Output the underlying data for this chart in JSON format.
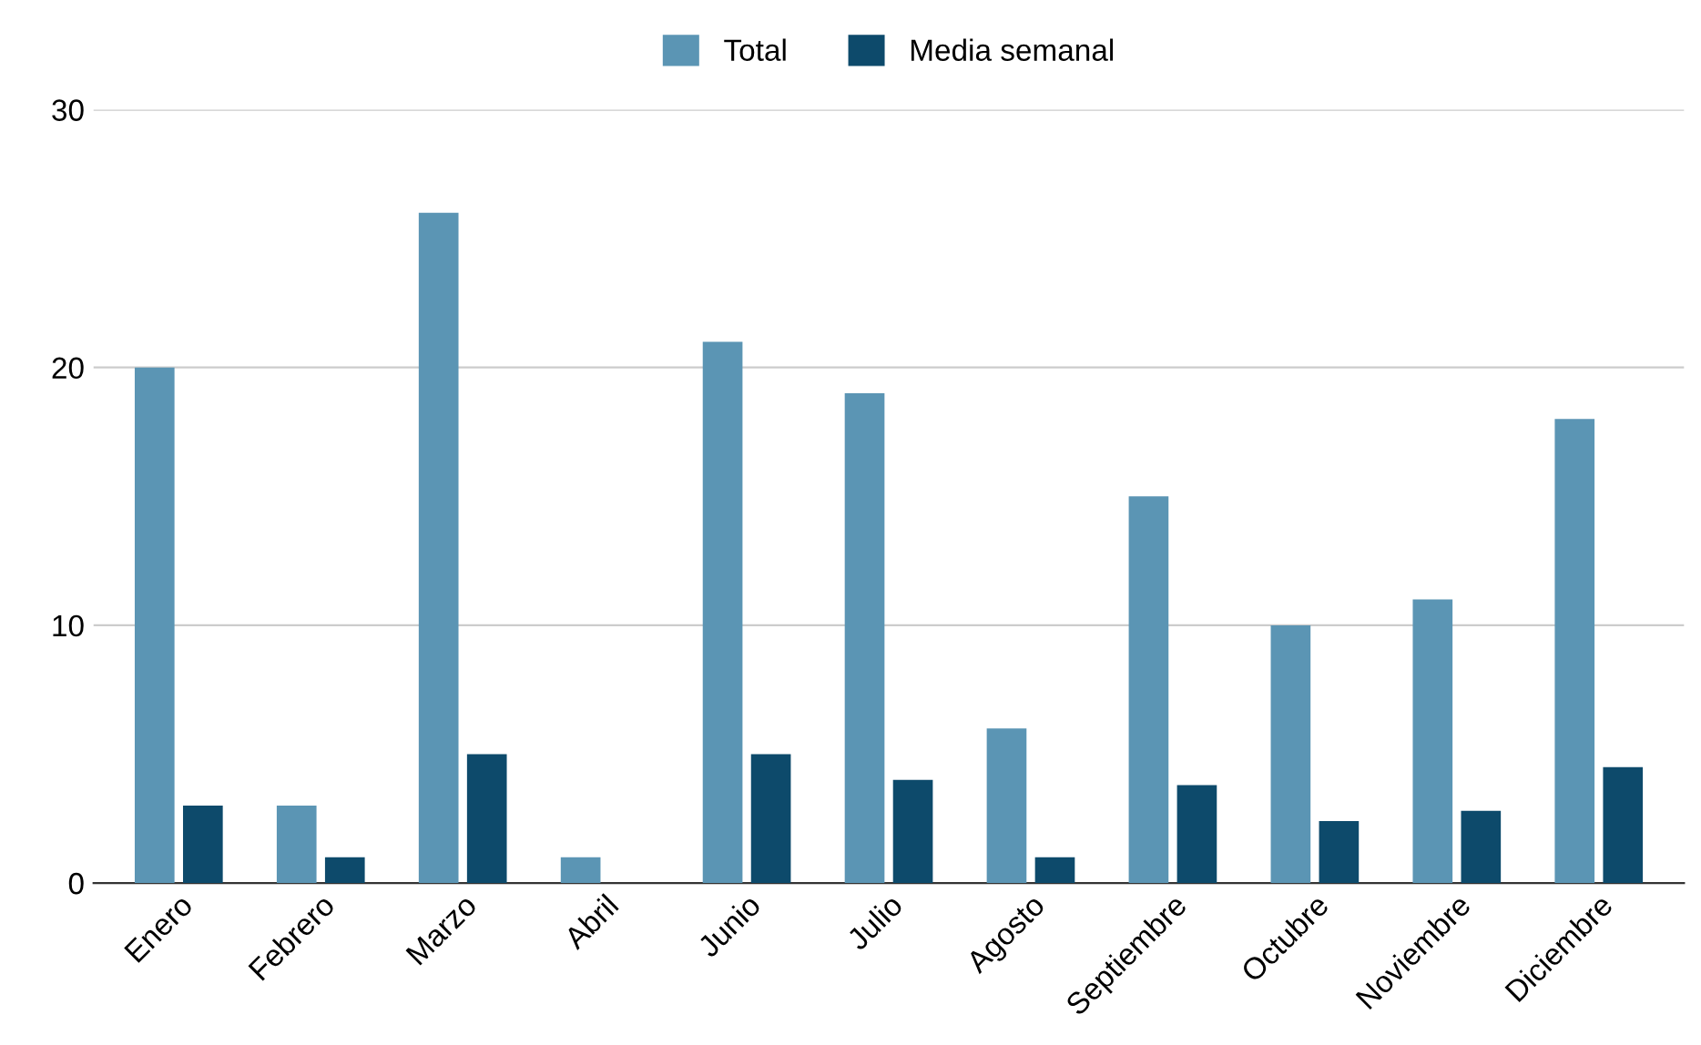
{
  "chart_data": {
    "type": "bar",
    "categories": [
      "Enero",
      "Febrero",
      "Marzo",
      "Abril",
      "Junio",
      "Julio",
      "Agosto",
      "Septiembre",
      "Octubre",
      "Noviembre",
      "Diciembre"
    ],
    "series": [
      {
        "name": "Total",
        "color": "#5b95b4",
        "values": [
          20,
          3,
          26,
          1,
          21,
          19,
          6,
          15,
          10,
          11,
          18
        ]
      },
      {
        "name": "Media semanal",
        "color": "#0d4a6b",
        "values": [
          3,
          1,
          5,
          null,
          5,
          4,
          1,
          3.8,
          2.4,
          2.8,
          4.5
        ]
      }
    ],
    "ylim": [
      0,
      30
    ],
    "yticks": [
      0,
      10,
      20,
      30
    ],
    "grid": "y",
    "legend": "top"
  }
}
